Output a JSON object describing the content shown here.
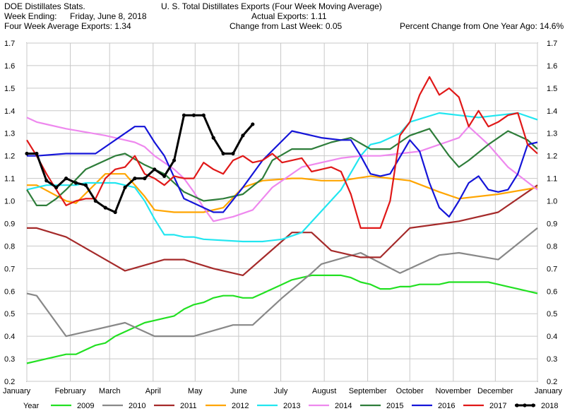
{
  "header": {
    "source": "DOE Distillates Stats.",
    "week_ending_label": "Week Ending:",
    "week_ending_value": "Friday, June 8, 2018",
    "four_week_avg": "Four Week Average Exports: 1.34",
    "actual_exports": "Actual Exports: 1.11",
    "change_last_week": "Change from Last Week: 0.05",
    "pct_change": "Percent Change from One Year Ago:  14.6%"
  },
  "chart_data": {
    "type": "line",
    "title": "U. S. Total Distillates Exports (Four Week Moving Average)",
    "x_axis_range_weeks": [
      0,
      52
    ],
    "ylim": [
      0.2,
      1.7
    ],
    "y_ticks": [
      "0.2",
      "0.3",
      "0.4",
      "0.5",
      "0.6",
      "0.7",
      "0.8",
      "0.9",
      "1.0",
      "1.1",
      "1.2",
      "1.3",
      "1.4",
      "1.5",
      "1.6",
      "1.7"
    ],
    "grid": true,
    "legend_position": "bottom",
    "legend_title": "Year",
    "month_labels": [
      {
        "label": "January",
        "week": 0
      },
      {
        "label": "February",
        "week": 4.43
      },
      {
        "label": "March",
        "week": 8.43
      },
      {
        "label": "April",
        "week": 12.86
      },
      {
        "label": "May",
        "week": 17.14
      },
      {
        "label": "June",
        "week": 21.57
      },
      {
        "label": "July",
        "week": 25.86
      },
      {
        "label": "August",
        "week": 30.29
      },
      {
        "label": "September",
        "week": 34.71
      },
      {
        "label": "October",
        "week": 39
      },
      {
        "label": "November",
        "week": 43.43
      },
      {
        "label": "December",
        "week": 47.71
      },
      {
        "label": "January",
        "week": 52
      }
    ],
    "series": [
      {
        "name": "2009",
        "color": "#22e022",
        "width": 2.2,
        "markers": false,
        "x": [
          0,
          2,
          4,
          5,
          6,
          7,
          8,
          9,
          10,
          11,
          12,
          13,
          14,
          15,
          16,
          17,
          18,
          19,
          20,
          21,
          22,
          23,
          24,
          25,
          26,
          27,
          28,
          29,
          30,
          31,
          32,
          33,
          34,
          35,
          36,
          37,
          38,
          39,
          40,
          41,
          42,
          43,
          44,
          45,
          46,
          47,
          48,
          49,
          50,
          51,
          52
        ],
        "y": [
          0.28,
          0.3,
          0.32,
          0.32,
          0.34,
          0.36,
          0.37,
          0.4,
          0.42,
          0.44,
          0.46,
          0.47,
          0.48,
          0.49,
          0.52,
          0.54,
          0.55,
          0.57,
          0.58,
          0.58,
          0.57,
          0.57,
          0.59,
          0.61,
          0.63,
          0.65,
          0.66,
          0.67,
          0.67,
          0.67,
          0.67,
          0.66,
          0.64,
          0.63,
          0.61,
          0.61,
          0.62,
          0.62,
          0.63,
          0.63,
          0.63,
          0.64,
          0.64,
          0.64,
          0.64,
          0.64,
          0.63,
          0.62,
          0.61,
          0.6,
          0.59
        ]
      },
      {
        "name": "2010",
        "color": "#888888",
        "width": 2.2,
        "markers": false,
        "x": [
          0,
          1,
          4,
          10,
          13,
          17,
          21,
          23,
          26,
          29,
          30,
          34,
          38,
          40,
          42,
          44,
          48,
          52
        ],
        "y": [
          0.59,
          0.58,
          0.4,
          0.46,
          0.4,
          0.4,
          0.45,
          0.45,
          0.57,
          0.68,
          0.72,
          0.77,
          0.68,
          0.72,
          0.76,
          0.77,
          0.74,
          0.88
        ]
      },
      {
        "name": "2011",
        "color": "#a52a2a",
        "width": 2.2,
        "markers": false,
        "x": [
          0,
          1,
          4,
          10,
          14,
          16,
          19,
          22,
          27,
          29,
          31,
          34,
          36,
          39,
          44,
          48,
          52
        ],
        "y": [
          0.88,
          0.88,
          0.84,
          0.69,
          0.74,
          0.74,
          0.7,
          0.67,
          0.86,
          0.86,
          0.78,
          0.75,
          0.75,
          0.88,
          0.91,
          0.95,
          1.07
        ]
      },
      {
        "name": "2012",
        "color": "#ffa500",
        "width": 2.2,
        "markers": false,
        "x": [
          0,
          1,
          4,
          5,
          8,
          10,
          12,
          13,
          15,
          18,
          20,
          22,
          24,
          27,
          28,
          30,
          32,
          35,
          37,
          39,
          42,
          44,
          48,
          52
        ],
        "y": [
          1.07,
          1.07,
          1.0,
          0.99,
          1.12,
          1.12,
          1.02,
          0.96,
          0.95,
          0.95,
          0.97,
          1.06,
          1.09,
          1.1,
          1.1,
          1.09,
          1.09,
          1.11,
          1.1,
          1.09,
          1.04,
          1.01,
          1.03,
          1.06
        ]
      },
      {
        "name": "2013",
        "color": "#22e6f0",
        "width": 2.2,
        "markers": false,
        "x": [
          0,
          2,
          5,
          6,
          7,
          9,
          10,
          11,
          12,
          13,
          14,
          15,
          16,
          17,
          18,
          22,
          24,
          26,
          28,
          32,
          34,
          35,
          36,
          38,
          39,
          42,
          44,
          46,
          48,
          50,
          52
        ],
        "y": [
          1.05,
          1.07,
          1.07,
          1.08,
          1.08,
          1.08,
          1.07,
          1.06,
          1.0,
          0.92,
          0.85,
          0.85,
          0.84,
          0.84,
          0.83,
          0.82,
          0.82,
          0.83,
          0.86,
          1.05,
          1.2,
          1.25,
          1.26,
          1.3,
          1.35,
          1.39,
          1.38,
          1.37,
          1.38,
          1.39,
          1.36
        ]
      },
      {
        "name": "2014",
        "color": "#ee88ee",
        "width": 2.2,
        "markers": false,
        "x": [
          0,
          1,
          2,
          4,
          8,
          10,
          11,
          12,
          13,
          14,
          15,
          16,
          17,
          18,
          19,
          20,
          21,
          23,
          25,
          28,
          30,
          32,
          34,
          36,
          38,
          40,
          42,
          44,
          45,
          47,
          49,
          52
        ],
        "y": [
          1.37,
          1.35,
          1.34,
          1.32,
          1.29,
          1.27,
          1.26,
          1.24,
          1.2,
          1.17,
          1.14,
          1.1,
          1.04,
          0.97,
          0.91,
          0.92,
          0.93,
          0.96,
          1.06,
          1.15,
          1.17,
          1.19,
          1.2,
          1.2,
          1.21,
          1.22,
          1.25,
          1.28,
          1.33,
          1.25,
          1.15,
          1.05
        ]
      },
      {
        "name": "2015",
        "color": "#2e7d3a",
        "width": 2.2,
        "markers": false,
        "x": [
          0,
          1,
          2,
          3,
          4,
          6,
          9,
          10,
          12,
          14,
          15,
          16,
          18,
          20,
          22,
          24,
          25,
          27,
          29,
          31,
          33,
          35,
          37,
          39,
          41,
          42,
          43,
          44,
          45,
          47,
          49,
          51,
          52
        ],
        "y": [
          1.05,
          0.98,
          0.98,
          1.01,
          1.05,
          1.14,
          1.2,
          1.21,
          1.16,
          1.12,
          1.08,
          1.04,
          1.0,
          1.01,
          1.03,
          1.1,
          1.18,
          1.23,
          1.23,
          1.26,
          1.28,
          1.23,
          1.23,
          1.29,
          1.32,
          1.26,
          1.2,
          1.15,
          1.18,
          1.25,
          1.31,
          1.27,
          1.23
        ]
      },
      {
        "name": "2016",
        "color": "#1515d8",
        "width": 2.2,
        "markers": false,
        "x": [
          0,
          1,
          4,
          7,
          11,
          12,
          13,
          14,
          16,
          18,
          19,
          20,
          22,
          24,
          27,
          30,
          32,
          33,
          34,
          35,
          36,
          37,
          39,
          40,
          41,
          42,
          43,
          44,
          45,
          46,
          47,
          48,
          49,
          50,
          51,
          52
        ],
        "y": [
          1.2,
          1.2,
          1.21,
          1.21,
          1.33,
          1.33,
          1.26,
          1.2,
          1.01,
          0.97,
          0.95,
          0.95,
          1.06,
          1.18,
          1.31,
          1.28,
          1.27,
          1.27,
          1.2,
          1.12,
          1.11,
          1.12,
          1.27,
          1.22,
          1.08,
          0.97,
          0.93,
          1.0,
          1.08,
          1.11,
          1.05,
          1.04,
          1.05,
          1.12,
          1.25,
          1.26
        ]
      },
      {
        "name": "2017",
        "color": "#e01818",
        "width": 2.2,
        "markers": false,
        "x": [
          0,
          1,
          2,
          3,
          4,
          5,
          6,
          7,
          8,
          9,
          10,
          11,
          12,
          13,
          14,
          15,
          16,
          17,
          18,
          19,
          20,
          21,
          22,
          23,
          24,
          25,
          26,
          27,
          28,
          29,
          30,
          31,
          32,
          33,
          34,
          35,
          36,
          37,
          38,
          39,
          40,
          41,
          42,
          43,
          44,
          45,
          46,
          47,
          48,
          49,
          50,
          51,
          52
        ],
        "y": [
          1.27,
          1.2,
          1.12,
          1.05,
          0.98,
          1.0,
          1.01,
          1.01,
          1.1,
          1.14,
          1.15,
          1.2,
          1.12,
          1.1,
          1.07,
          1.11,
          1.1,
          1.1,
          1.17,
          1.14,
          1.12,
          1.18,
          1.2,
          1.17,
          1.18,
          1.21,
          1.17,
          1.18,
          1.19,
          1.13,
          1.14,
          1.15,
          1.13,
          1.03,
          0.88,
          0.88,
          0.88,
          1.0,
          1.29,
          1.35,
          1.47,
          1.55,
          1.47,
          1.5,
          1.46,
          1.33,
          1.4,
          1.33,
          1.35,
          1.38,
          1.39,
          1.25,
          1.21
        ]
      },
      {
        "name": "2018",
        "color": "#000000",
        "width": 3,
        "markers": true,
        "x": [
          0,
          1,
          2,
          3,
          4,
          5,
          6,
          7,
          8,
          9,
          10,
          11,
          12,
          13,
          14,
          15,
          16,
          17,
          18,
          19,
          20,
          21,
          22,
          23
        ],
        "y": [
          1.21,
          1.21,
          1.09,
          1.06,
          1.1,
          1.08,
          1.07,
          1.0,
          0.97,
          0.95,
          1.06,
          1.1,
          1.1,
          1.14,
          1.11,
          1.18,
          1.38,
          1.38,
          1.38,
          1.28,
          1.21,
          1.21,
          1.29,
          1.34
        ]
      }
    ]
  }
}
